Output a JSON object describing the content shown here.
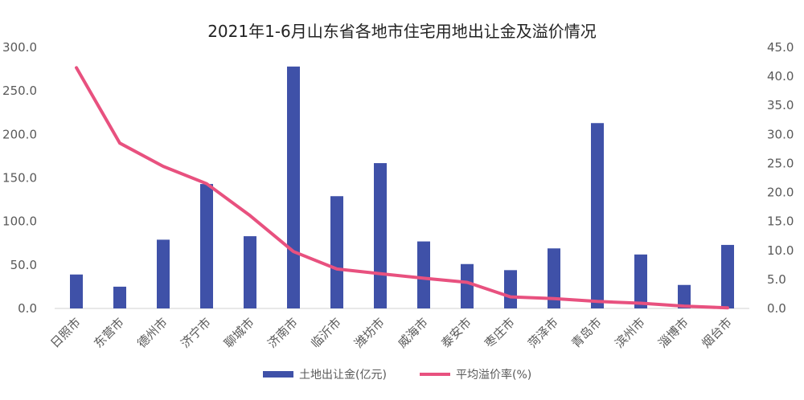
{
  "chart_data": {
    "type": "bar",
    "title": "2021年1-6月山东省各地市住宅用地出让金及溢价情况",
    "categories": [
      "日照市",
      "东营市",
      "德州市",
      "济宁市",
      "聊城市",
      "济南市",
      "临沂市",
      "潍坊市",
      "威海市",
      "泰安市",
      "枣庄市",
      "菏泽市",
      "青岛市",
      "滨州市",
      "淄博市",
      "烟台市"
    ],
    "series": [
      {
        "name": "土地出让金(亿元)",
        "type": "bar",
        "axis": "left",
        "values": [
          39,
          25,
          79,
          143,
          83,
          278,
          129,
          167,
          77,
          51,
          44,
          69,
          213,
          62,
          27,
          73
        ]
      },
      {
        "name": "平均溢价率(%)",
        "type": "line",
        "axis": "right",
        "values": [
          41.5,
          28.5,
          24.5,
          21.5,
          16.0,
          9.8,
          6.8,
          6.0,
          5.2,
          4.5,
          2.0,
          1.7,
          1.2,
          0.9,
          0.4,
          0.1
        ]
      }
    ],
    "y_left": {
      "min": 0,
      "max": 300,
      "step": 50,
      "tick_labels": [
        "0.0",
        "50.0",
        "100.0",
        "150.0",
        "200.0",
        "250.0",
        "300.0"
      ]
    },
    "y_right": {
      "min": 0,
      "max": 45,
      "step": 5,
      "tick_labels": [
        "0.0",
        "5.0",
        "10.0",
        "15.0",
        "20.0",
        "25.0",
        "30.0",
        "35.0",
        "40.0",
        "45.0"
      ]
    },
    "grid": false,
    "legend_position": "bottom",
    "colors": {
      "bar": "#3F51A8",
      "line": "#E8517F",
      "axis": "#D0D0D0"
    }
  }
}
